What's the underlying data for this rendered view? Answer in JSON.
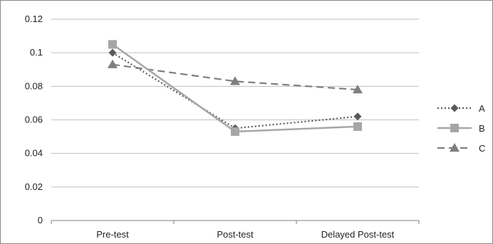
{
  "chart_data": {
    "type": "line",
    "title": "",
    "xlabel": "",
    "ylabel": "",
    "categories": [
      "Pre-test",
      "Post-test",
      "Delayed Post-test"
    ],
    "ylim": [
      0,
      0.12
    ],
    "yticks": [
      "0",
      "0.02",
      "0.04",
      "0.06",
      "0.08",
      "0.1",
      "0.12"
    ],
    "grid": true,
    "legend_position": "right",
    "series": [
      {
        "name": "A",
        "values": [
          0.1,
          0.055,
          0.062
        ],
        "color": "#595959",
        "line_style": "dotted",
        "marker": "diamond"
      },
      {
        "name": "B",
        "values": [
          0.105,
          0.053,
          0.056
        ],
        "color": "#a6a6a6",
        "line_style": "solid",
        "marker": "square"
      },
      {
        "name": "C",
        "values": [
          0.093,
          0.083,
          0.078
        ],
        "color": "#7f7f7f",
        "line_style": "dashed",
        "marker": "triangle"
      }
    ]
  }
}
